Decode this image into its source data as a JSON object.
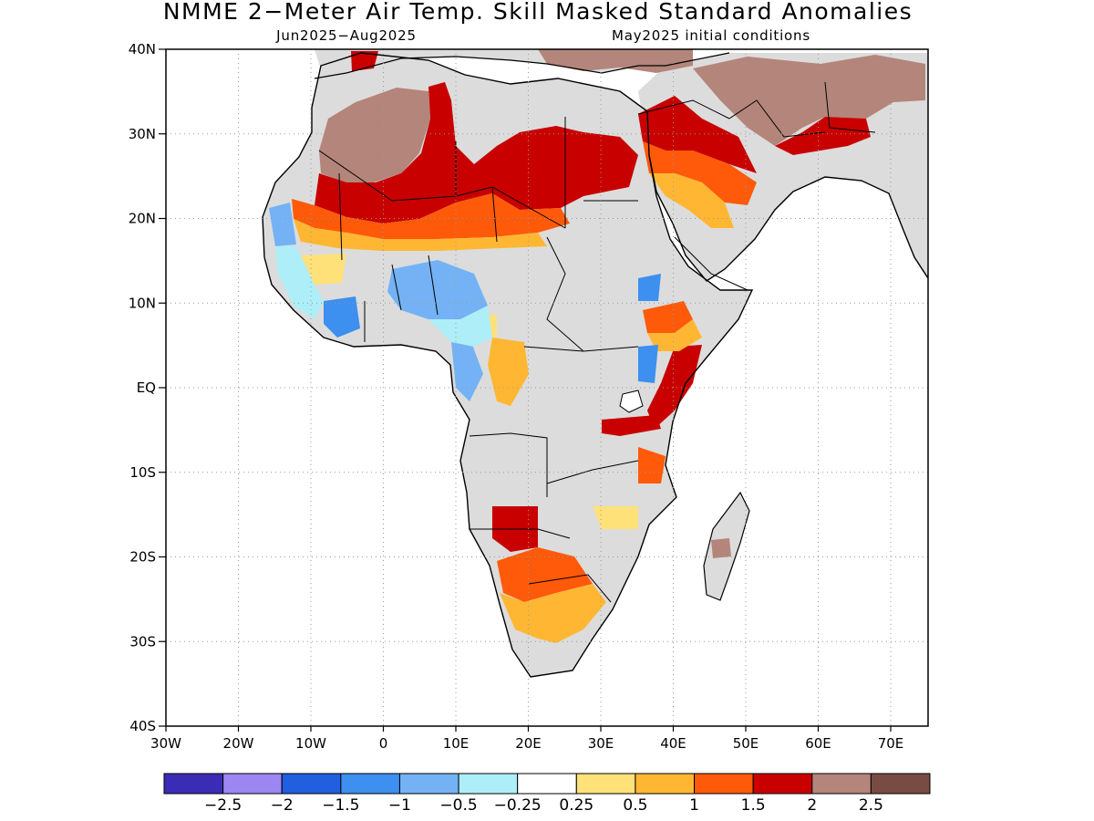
{
  "title": "NMME 2−Meter Air Temp. Skill Masked Standard Anomalies",
  "subtitle_left": "Jun2025−Aug2025",
  "subtitle_right": "May2025 initial conditions",
  "axes": {
    "lat_labels": [
      "40N",
      "30N",
      "20N",
      "10N",
      "EQ",
      "10S",
      "20S",
      "30S",
      "40S"
    ],
    "lon_labels": [
      "30W",
      "20W",
      "10W",
      "0",
      "10E",
      "20E",
      "30E",
      "40E",
      "50E",
      "60E",
      "70E"
    ]
  },
  "legend": {
    "colors": [
      "#3a2cb4",
      "#9c86f2",
      "#1f5fe0",
      "#3d8ff0",
      "#74b2f5",
      "#aeeef8",
      "#ffffff",
      "#ffe17a",
      "#ffb733",
      "#ff5a0a",
      "#c80000",
      "#b4857a",
      "#784c43"
    ],
    "labels": [
      "−2.5",
      "−2",
      "−1.5",
      "−1",
      "−0.5",
      "−0.25",
      "0.25",
      "0.5",
      "1",
      "1.5",
      "2",
      "2.5"
    ]
  },
  "palette": {
    "land_no_skill": "#dcdcdc",
    "ocean": "#ffffff",
    "coast": "#000000"
  }
}
